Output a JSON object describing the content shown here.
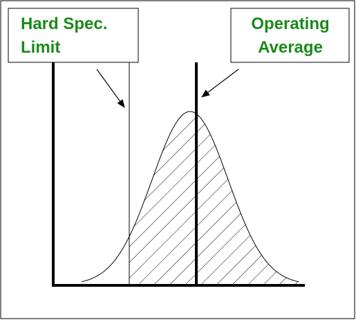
{
  "labels": {
    "spec_limit": [
      "Hard Spec.",
      "Limit"
    ],
    "average": [
      "Operating",
      "Average"
    ]
  }
}
